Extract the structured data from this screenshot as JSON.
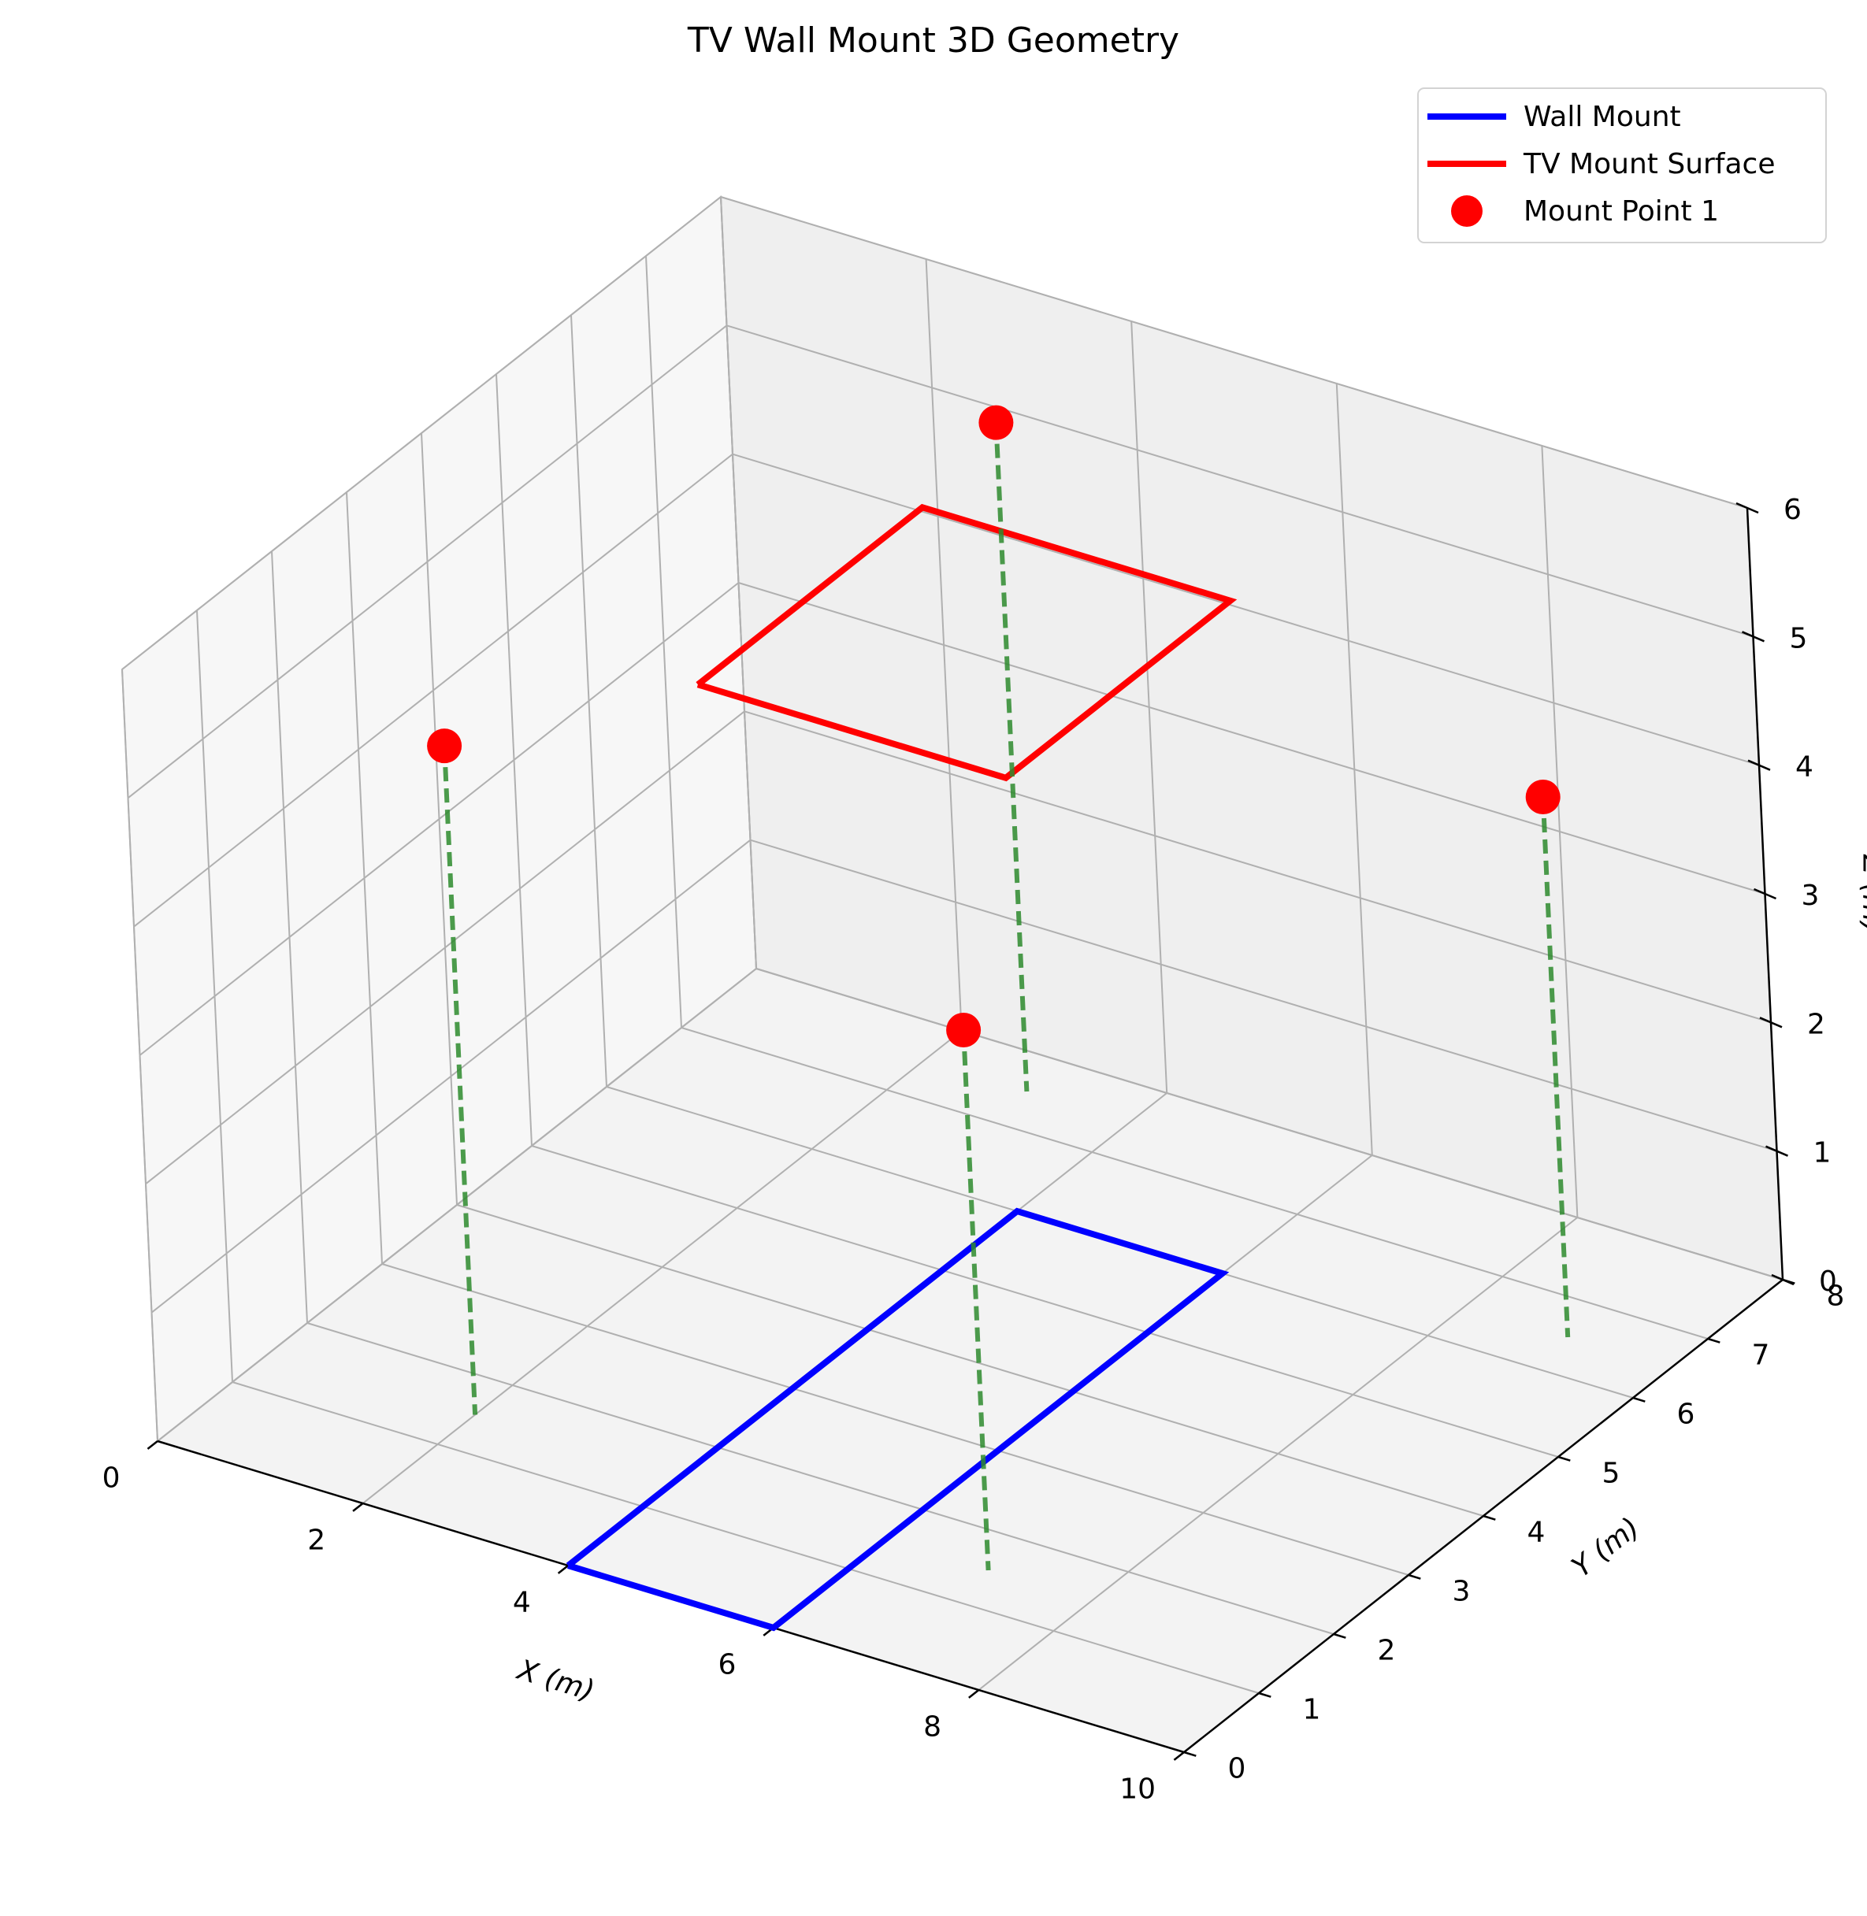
{
  "chart_data": {
    "type": "line",
    "projection": "3d",
    "title": "TV Wall Mount 3D Geometry",
    "xlabel": "X (m)",
    "ylabel": "Y (m)",
    "zlabel": "Z (m)",
    "xlim": [
      0,
      10
    ],
    "ylim": [
      0,
      8
    ],
    "zlim": [
      0,
      6
    ],
    "xticks": [
      "0",
      "2",
      "4",
      "6",
      "8",
      "10"
    ],
    "yticks": [
      "0",
      "1",
      "2",
      "3",
      "4",
      "5",
      "6",
      "7",
      "8"
    ],
    "zticks": [
      "0",
      "1",
      "2",
      "3",
      "4",
      "5",
      "6"
    ],
    "grid": true,
    "legend_placement": "top-right",
    "colors": {
      "wall": "#0000ff",
      "tv": "#ff0000",
      "points": "#ff0000",
      "drops": "#2e8b2e"
    },
    "series": [
      {
        "name": "Wall Mount",
        "kind": "line",
        "points": [
          [
            4,
            0,
            0
          ],
          [
            6,
            0,
            0
          ],
          [
            6,
            6,
            0
          ],
          [
            4,
            6,
            0
          ],
          [
            4,
            0,
            0
          ]
        ]
      },
      {
        "name": "TV Mount Surface",
        "kind": "line",
        "points": [
          [
            3,
            3.5,
            5
          ],
          [
            6,
            3.5,
            5
          ],
          [
            6,
            6.5,
            5
          ],
          [
            3,
            6.5,
            5
          ],
          [
            3,
            3.5,
            5
          ]
        ]
      },
      {
        "name": "Mount Point 1",
        "kind": "scatter",
        "points": [
          [
            2,
            1.5,
            5.2
          ],
          [
            7,
            1.5,
            4.2
          ],
          [
            3,
            7.5,
            5.2
          ],
          [
            9,
            6.5,
            4.2
          ]
        ]
      }
    ]
  }
}
